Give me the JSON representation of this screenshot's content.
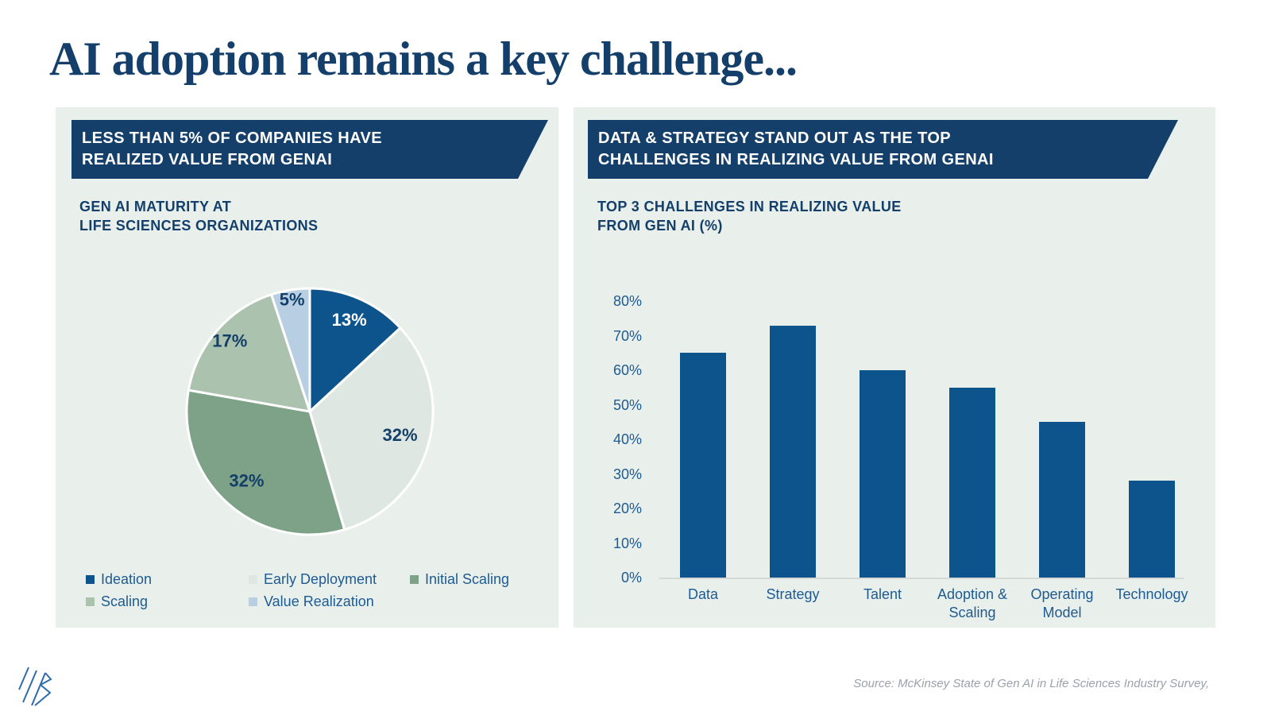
{
  "page": {
    "title": "AI adoption remains a key challenge...",
    "source_note": "Source: McKinsey State of Gen AI in Life Sciences Industry Survey,"
  },
  "colors": {
    "title_navy": "#143f6a",
    "banner_navy": "#143f6a",
    "accent_blue": "#0e548c",
    "panel_bg": "#e9efeb",
    "axis_text_blue": "#1d5b92",
    "pie_label_navy": "#133f68",
    "baseline_gray": "#d4d9d5",
    "source_gray": "#9aa1a9"
  },
  "left_panel": {
    "banner_line1": "LESS THAN 5% OF COMPANIES HAVE",
    "banner_line2": "REALIZED VALUE FROM GENAI",
    "subtitle_line1": "GEN AI MATURITY AT",
    "subtitle_line2": "LIFE SCIENCES ORGANIZATIONS"
  },
  "right_panel": {
    "banner_line1": "DATA & STRATEGY STAND OUT AS THE TOP",
    "banner_line2": "CHALLENGES IN REALIZING VALUE FROM GENAI",
    "subtitle_line1": "TOP 3 CHALLENGES IN REALIZING VALUE",
    "subtitle_line2": "FROM GEN AI (%)"
  },
  "chart_data": [
    {
      "type": "pie",
      "title": "GEN AI MATURITY AT LIFE SCIENCES ORGANIZATIONS",
      "categories": [
        "Ideation",
        "Early Deployment",
        "Initial Scaling",
        "Scaling",
        "Value Realization"
      ],
      "values": [
        13,
        32,
        32,
        17,
        5
      ],
      "labels": [
        "13%",
        "32%",
        "32%",
        "17%",
        "5%"
      ],
      "colors": [
        "#0e548c",
        "#dfe7e2",
        "#7da287",
        "#abc2ae",
        "#b8cfe3"
      ],
      "label_colors": [
        "#ffffff",
        "#133f68",
        "#133f68",
        "#133f68",
        "#133f68"
      ],
      "label_radius": [
        0.8,
        0.76,
        0.77,
        0.86,
        0.91
      ],
      "start_angle_deg": -90,
      "clockwise": true,
      "legend_position": "bottom",
      "slice_border_color": "#ffffff"
    },
    {
      "type": "bar",
      "title": "TOP 3 CHALLENGES IN REALIZING VALUE FROM GEN AI (%)",
      "categories": [
        "Data",
        "Strategy",
        "Talent",
        "Adoption & Scaling",
        "Operating Model",
        "Technology"
      ],
      "values": [
        65,
        73,
        60,
        55,
        45,
        28
      ],
      "yticks": [
        "0%",
        "10%",
        "20%",
        "30%",
        "40%",
        "50%",
        "60%",
        "70%",
        "80%"
      ],
      "ylim": [
        0,
        80
      ],
      "ytick_step": 10,
      "grid": false,
      "bar_color": "#0e548c",
      "xlabel": "",
      "ylabel": ""
    }
  ]
}
